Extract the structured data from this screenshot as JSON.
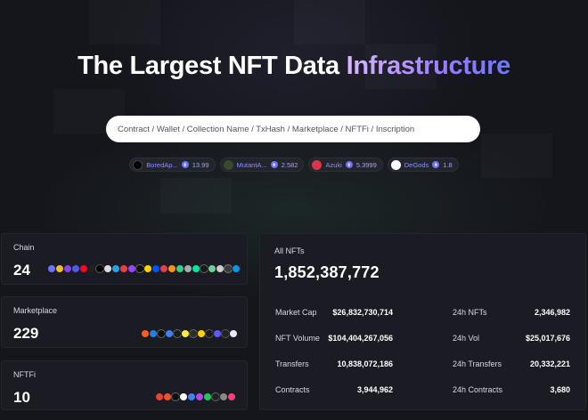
{
  "hero": {
    "title_plain": "The Largest NFT Data ",
    "title_highlight": "Infrastructure"
  },
  "search": {
    "placeholder": "Contract / Wallet / Collection Name / TxHash / Marketplace / NFTFi / Inscription"
  },
  "trending": [
    {
      "name": "BoredAp...",
      "value": "13.99",
      "avatar_color": "#000000"
    },
    {
      "name": "MutantA...",
      "value": "2.582",
      "avatar_color": "#3a4a2a"
    },
    {
      "name": "Azuki",
      "value": "5.3999",
      "avatar_color": "#d9364c"
    },
    {
      "name": "DeGods",
      "value": "1.8",
      "avatar_color": "#ffffff"
    }
  ],
  "cards": {
    "chain": {
      "label": "Chain",
      "count": "24"
    },
    "marketplace": {
      "label": "Marketplace",
      "count": "229"
    },
    "nftfi": {
      "label": "NFTFi",
      "count": "10"
    }
  },
  "overview": {
    "label": "All NFTs",
    "total": "1,852,387,772",
    "stats_left": [
      {
        "label": "Market Cap",
        "value": "$26,832,730,714"
      },
      {
        "label": "NFT Volume",
        "value": "$104,404,267,056"
      },
      {
        "label": "Transfers",
        "value": "10,838,072,186"
      },
      {
        "label": "Contracts",
        "value": "3,944,962"
      }
    ],
    "stats_right": [
      {
        "label": "24h NFTs",
        "value": "2,346,982"
      },
      {
        "label": "24h Vol",
        "value": "$25,017,676"
      },
      {
        "label": "24h Transfers",
        "value": "20,332,221"
      },
      {
        "label": "24h Contracts",
        "value": "3,680"
      }
    ]
  },
  "colors": {
    "accent": "#8a8fff",
    "page_bg": "#15161c",
    "card_bg": "#1b1c23"
  }
}
